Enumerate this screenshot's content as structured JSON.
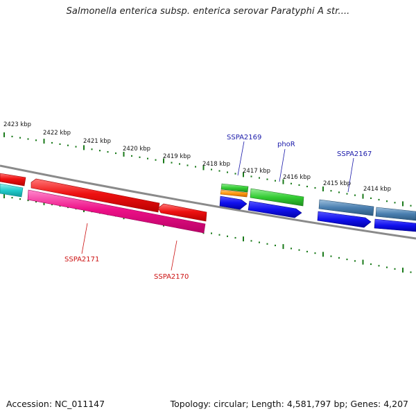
{
  "title": "Salmonella enterica subsp. enterica serovar Paratyphi A str....",
  "footer": {
    "accession": "Accession: NC_011147",
    "stats": "Topology: circular; Length: 4,581,797 bp; Genes: 4,207"
  },
  "kbp_labels": [
    "2423 kbp",
    "2422 kbp",
    "2421 kbp",
    "2420 kbp",
    "2419 kbp",
    "2418 kbp",
    "2417 kbp",
    "2416 kbp",
    "2415 kbp",
    "2414 kbp"
  ],
  "gene_labels": {
    "sspa2169": "SSPA2169",
    "phor": "phoR",
    "sspa2167": "SSPA2167",
    "sspa2171": "SSPA2171",
    "sspa2170": "SSPA2170"
  },
  "colors": {
    "backbone": "#808080",
    "tick": "#1a7a1a",
    "red_gene": "#ee1111",
    "magenta_gene": "#ee1188",
    "cyan_gene": "#22cccc",
    "green_gene": "#33cc33",
    "orange_gene": "#ff9911",
    "blue_gene": "#1111ee",
    "steel_gene": "#4a7fb0",
    "label_blue": "#1a1aaa",
    "label_red": "#cc1111"
  }
}
